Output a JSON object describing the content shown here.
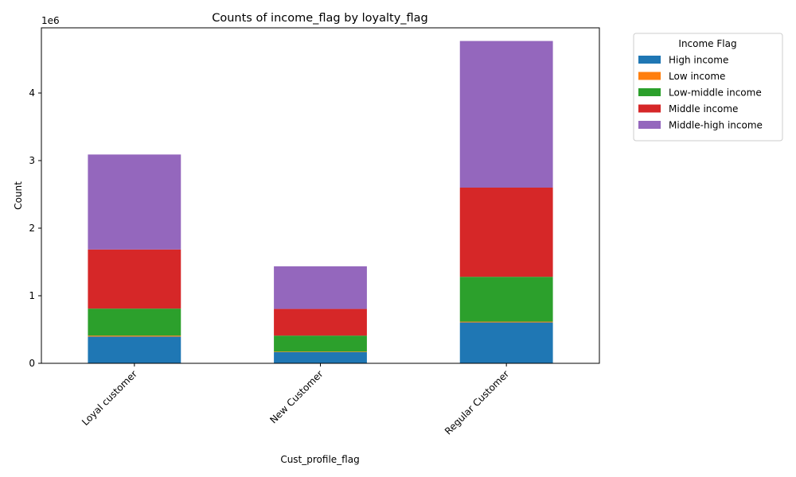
{
  "chart_data": {
    "type": "bar",
    "stacked": true,
    "title": "Counts of income_flag by loyalty_flag",
    "xlabel": "Cust_profile_flag",
    "ylabel": "Count",
    "y_offset_label": "1e6",
    "ylim": [
      0,
      5000000
    ],
    "y_ticks": [
      0,
      1000000,
      2000000,
      3000000,
      4000000
    ],
    "y_tick_labels": [
      "0",
      "1",
      "2",
      "3",
      "4"
    ],
    "categories": [
      "Loyal customer",
      "New Customer",
      "Regular Customer"
    ],
    "legend_title": "Income Flag",
    "legend_position": "outside-top-right",
    "series": [
      {
        "name": "High income",
        "color": "#1f77b4",
        "values": [
          395000,
          165000,
          605000
        ]
      },
      {
        "name": "Low income",
        "color": "#ff7f0e",
        "values": [
          15000,
          8000,
          12000
        ]
      },
      {
        "name": "Low-middle income",
        "color": "#2ca02c",
        "values": [
          400000,
          237000,
          663000
        ]
      },
      {
        "name": "Middle income",
        "color": "#d62728",
        "values": [
          875000,
          395000,
          1320000
        ]
      },
      {
        "name": "Middle-high income",
        "color": "#9467bd",
        "values": [
          1405000,
          630000,
          2170000
        ]
      }
    ]
  }
}
